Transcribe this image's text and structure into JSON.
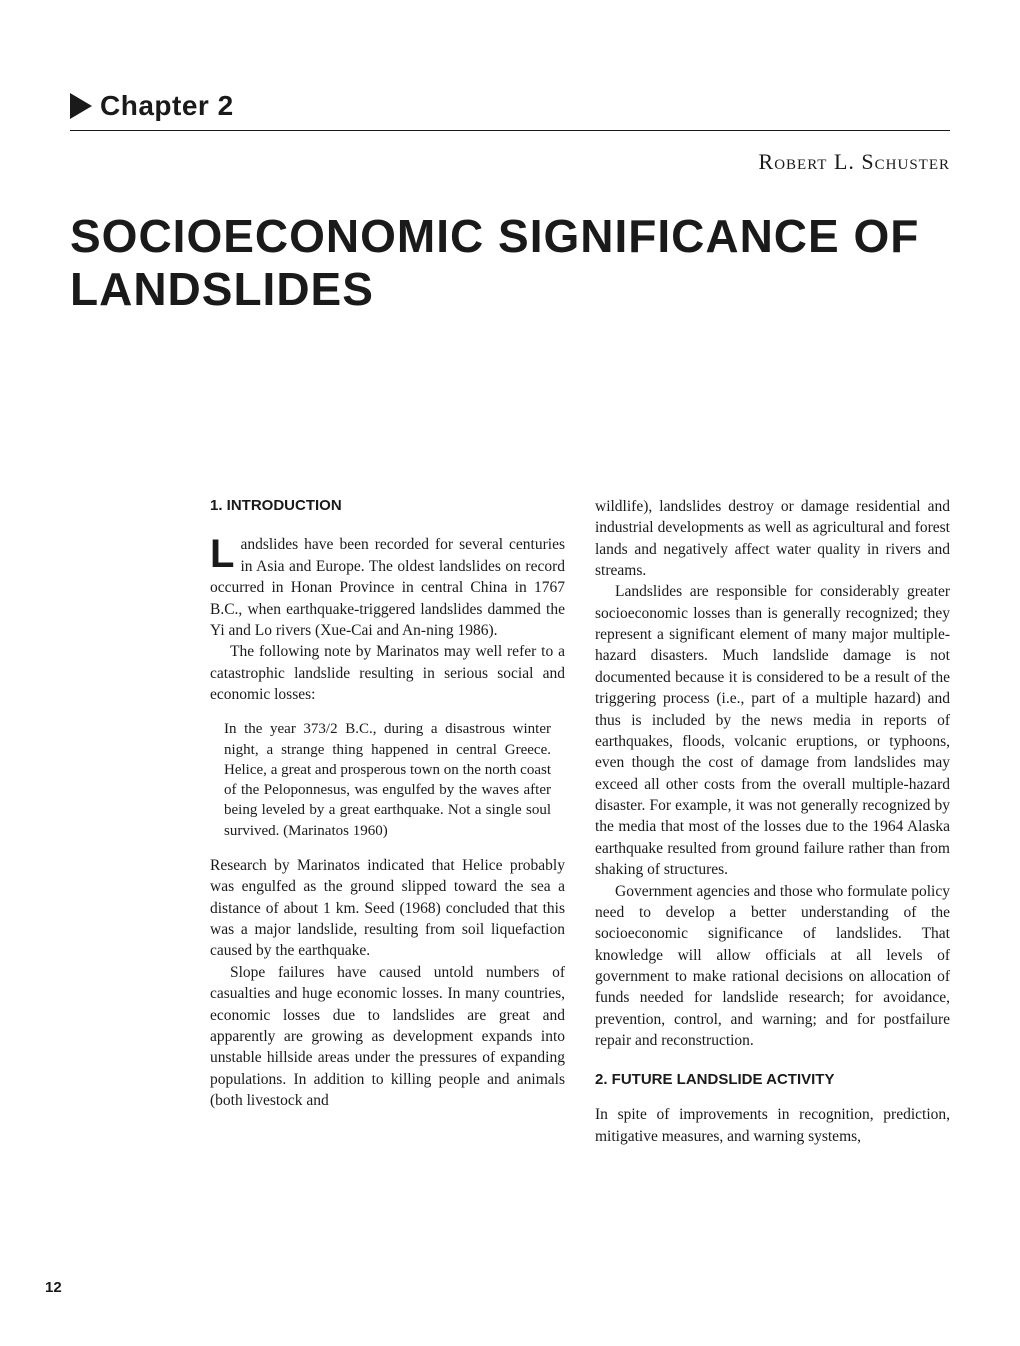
{
  "chapter": {
    "label": "Chapter 2"
  },
  "author": "Robert L. Schuster",
  "title": "SOCIOECONOMIC SIGNIFICANCE OF LANDSLIDES",
  "section1": {
    "heading": "1. INTRODUCTION",
    "para1": "andslides have been recorded for several centuries in Asia and Europe. The oldest landslides on record occurred in Honan Province in central China in 1767 B.C., when earthquake-triggered landslides dammed the Yi and Lo rivers (Xue-Cai and An-ning 1986).",
    "dropcap": "L",
    "para2": "The following note by Marinatos may well refer to a catastrophic landslide resulting in serious social and economic losses:",
    "quote": "In the year 373/2 B.C., during a disastrous winter night, a strange thing happened in central Greece. Helice, a great and prosperous town on the north coast of the Peloponnesus, was engulfed by the waves after being leveled by a great earthquake. Not a single soul survived. (Marinatos 1960)",
    "para3": "Research by Marinatos indicated that Helice probably was engulfed as the ground slipped toward the sea a distance of about 1 km. Seed (1968) concluded that this was a major landslide, resulting from soil liquefaction caused by the earthquake.",
    "para4": "Slope failures have caused untold numbers of casualties and huge economic losses. In many countries, economic losses due to landslides are great and apparently are growing as development expands into unstable hillside areas under the pressures of expanding populations. In addition to killing people and animals (both livestock and"
  },
  "column2": {
    "para1": "wildlife), landslides destroy or damage residential and industrial developments as well as agricultural and forest lands and negatively affect water quality in rivers and streams.",
    "para2": "Landslides are responsible for considerably greater socioeconomic losses than is generally recognized; they represent a significant element of many major multiple-hazard disasters. Much landslide damage is not documented because it is considered to be a result of the triggering process (i.e., part of a multiple hazard) and thus is included by the news media in reports of earthquakes, floods, volcanic eruptions, or typhoons, even though the cost of damage from landslides may exceed all other costs from the overall multiple-hazard disaster. For example, it was not generally recognized by the media that most of the losses due to the 1964 Alaska earthquake resulted from ground failure rather than from shaking of structures.",
    "para3": "Government agencies and those who formulate policy need to develop a better understanding of the socioeconomic significance of landslides. That knowledge will allow officials at all levels of government to make rational decisions on allocation of funds needed for landslide research; for avoidance, prevention, control, and warning; and for postfailure repair and reconstruction."
  },
  "section2": {
    "heading": "2. FUTURE LANDSLIDE ACTIVITY",
    "para1": "In spite of improvements in recognition, prediction, mitigative measures, and warning systems,"
  },
  "page_number": "12"
}
